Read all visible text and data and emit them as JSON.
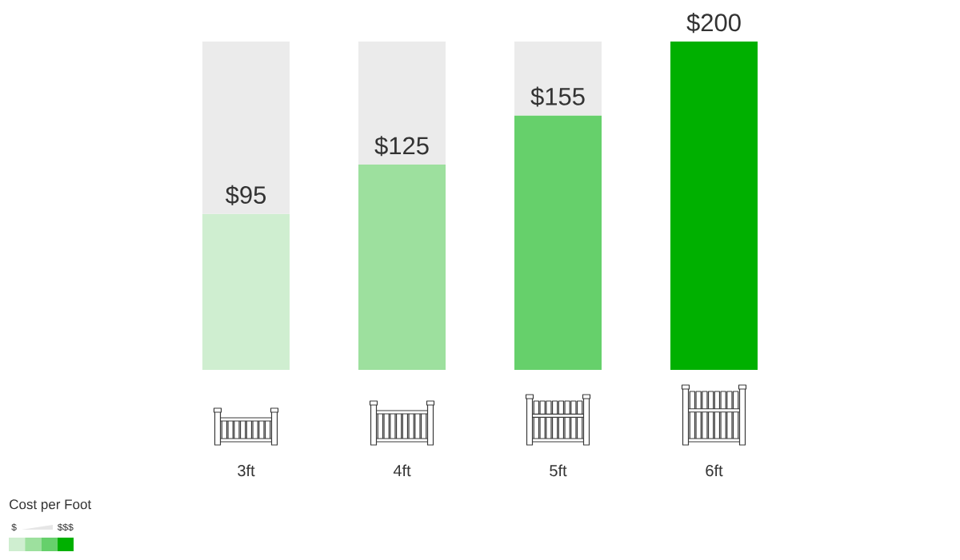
{
  "chart_data": {
    "type": "bar",
    "stacked": true,
    "categories": [
      "3ft",
      "4ft",
      "5ft",
      "6ft"
    ],
    "series": [
      {
        "colors": [
          "#cfeed0",
          "#9de09e",
          "#66d06b",
          "#00b000"
        ],
        "values": [
          95,
          125,
          155,
          200
        ],
        "value_labels": [
          "$95",
          "$125",
          "$155",
          "$200"
        ]
      },
      {
        "color": "#ebebeb",
        "values": [
          105,
          75,
          45,
          0
        ]
      }
    ],
    "legend_title": "Cost per Foot",
    "annotations": [
      "$",
      "$$$"
    ]
  }
}
